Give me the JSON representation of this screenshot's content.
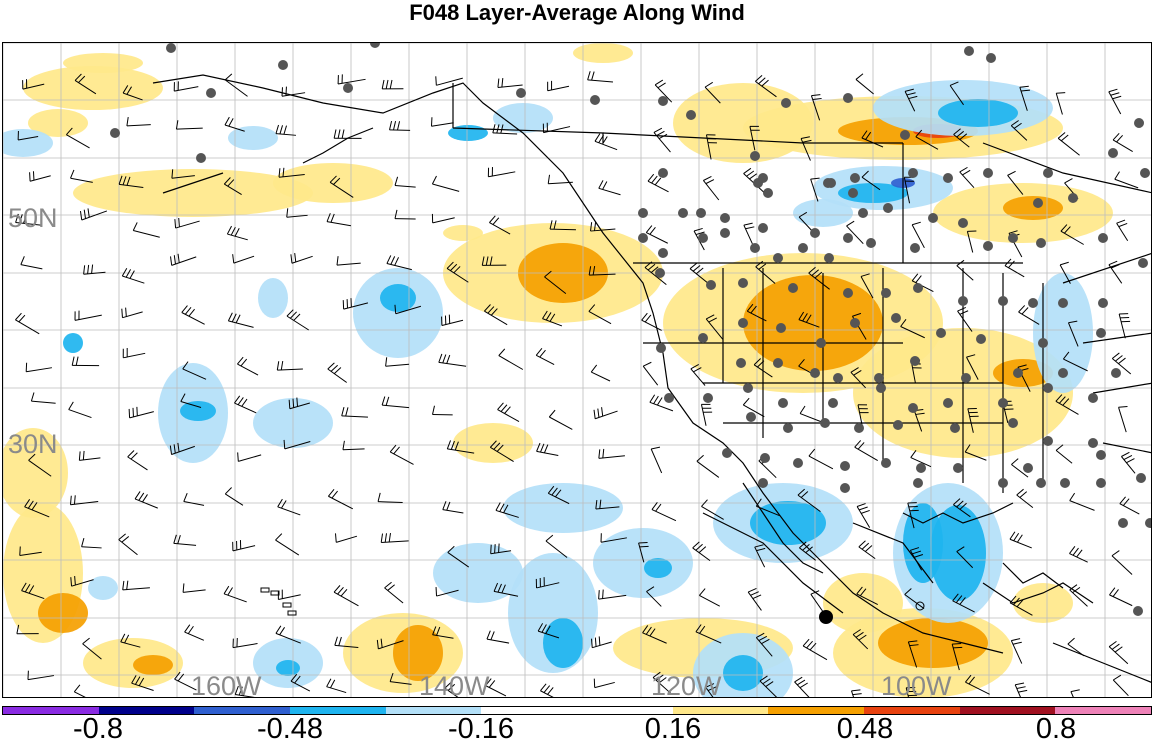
{
  "title": "F048 Layer-Average Along Wind",
  "latitude_labels": [
    "50N",
    "30N"
  ],
  "longitude_labels": [
    "160W",
    "140W",
    "120W",
    "100W"
  ],
  "colorbar": {
    "colors": [
      "#8a2be2",
      "#00008b",
      "#2f5fd0",
      "#1eb4ef",
      "#b3e0f8",
      "#ffffff",
      "#ffffff",
      "#ffe88a",
      "#f5a000",
      "#e8420f",
      "#a01020",
      "#ee82b8"
    ],
    "tick_labels": [
      "-0.8",
      "-0.48",
      "-0.16",
      "0.16",
      "0.48",
      "0.8"
    ]
  },
  "features": {
    "station_markers": "dark-gray-dot",
    "wind_barbs": "black-barb",
    "highlight_marker": "black-dot"
  }
}
